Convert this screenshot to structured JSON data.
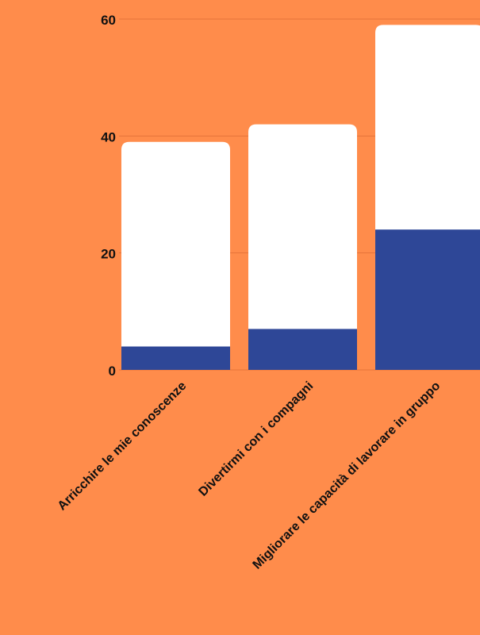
{
  "colors": {
    "background": "#FF8C4B",
    "grid": "#E5733A",
    "bar_fill": "#FFFFFF",
    "bar_highlight": "#2E4797",
    "text": "#111111"
  },
  "chart_data": {
    "type": "bar",
    "categories": [
      "Arricchire le mie conoscenze",
      "Divertirmi con i compagni",
      "Migliorare le capacità di lavorare in gruppo"
    ],
    "series": [
      {
        "values": [
          39,
          42,
          59
        ]
      },
      {
        "values": [
          4,
          7,
          24
        ]
      }
    ],
    "ylim": [
      0,
      60
    ],
    "yticks": [
      "0",
      "20",
      "40",
      "60"
    ],
    "grid": true,
    "title": "",
    "xlabel": "",
    "ylabel": ""
  }
}
